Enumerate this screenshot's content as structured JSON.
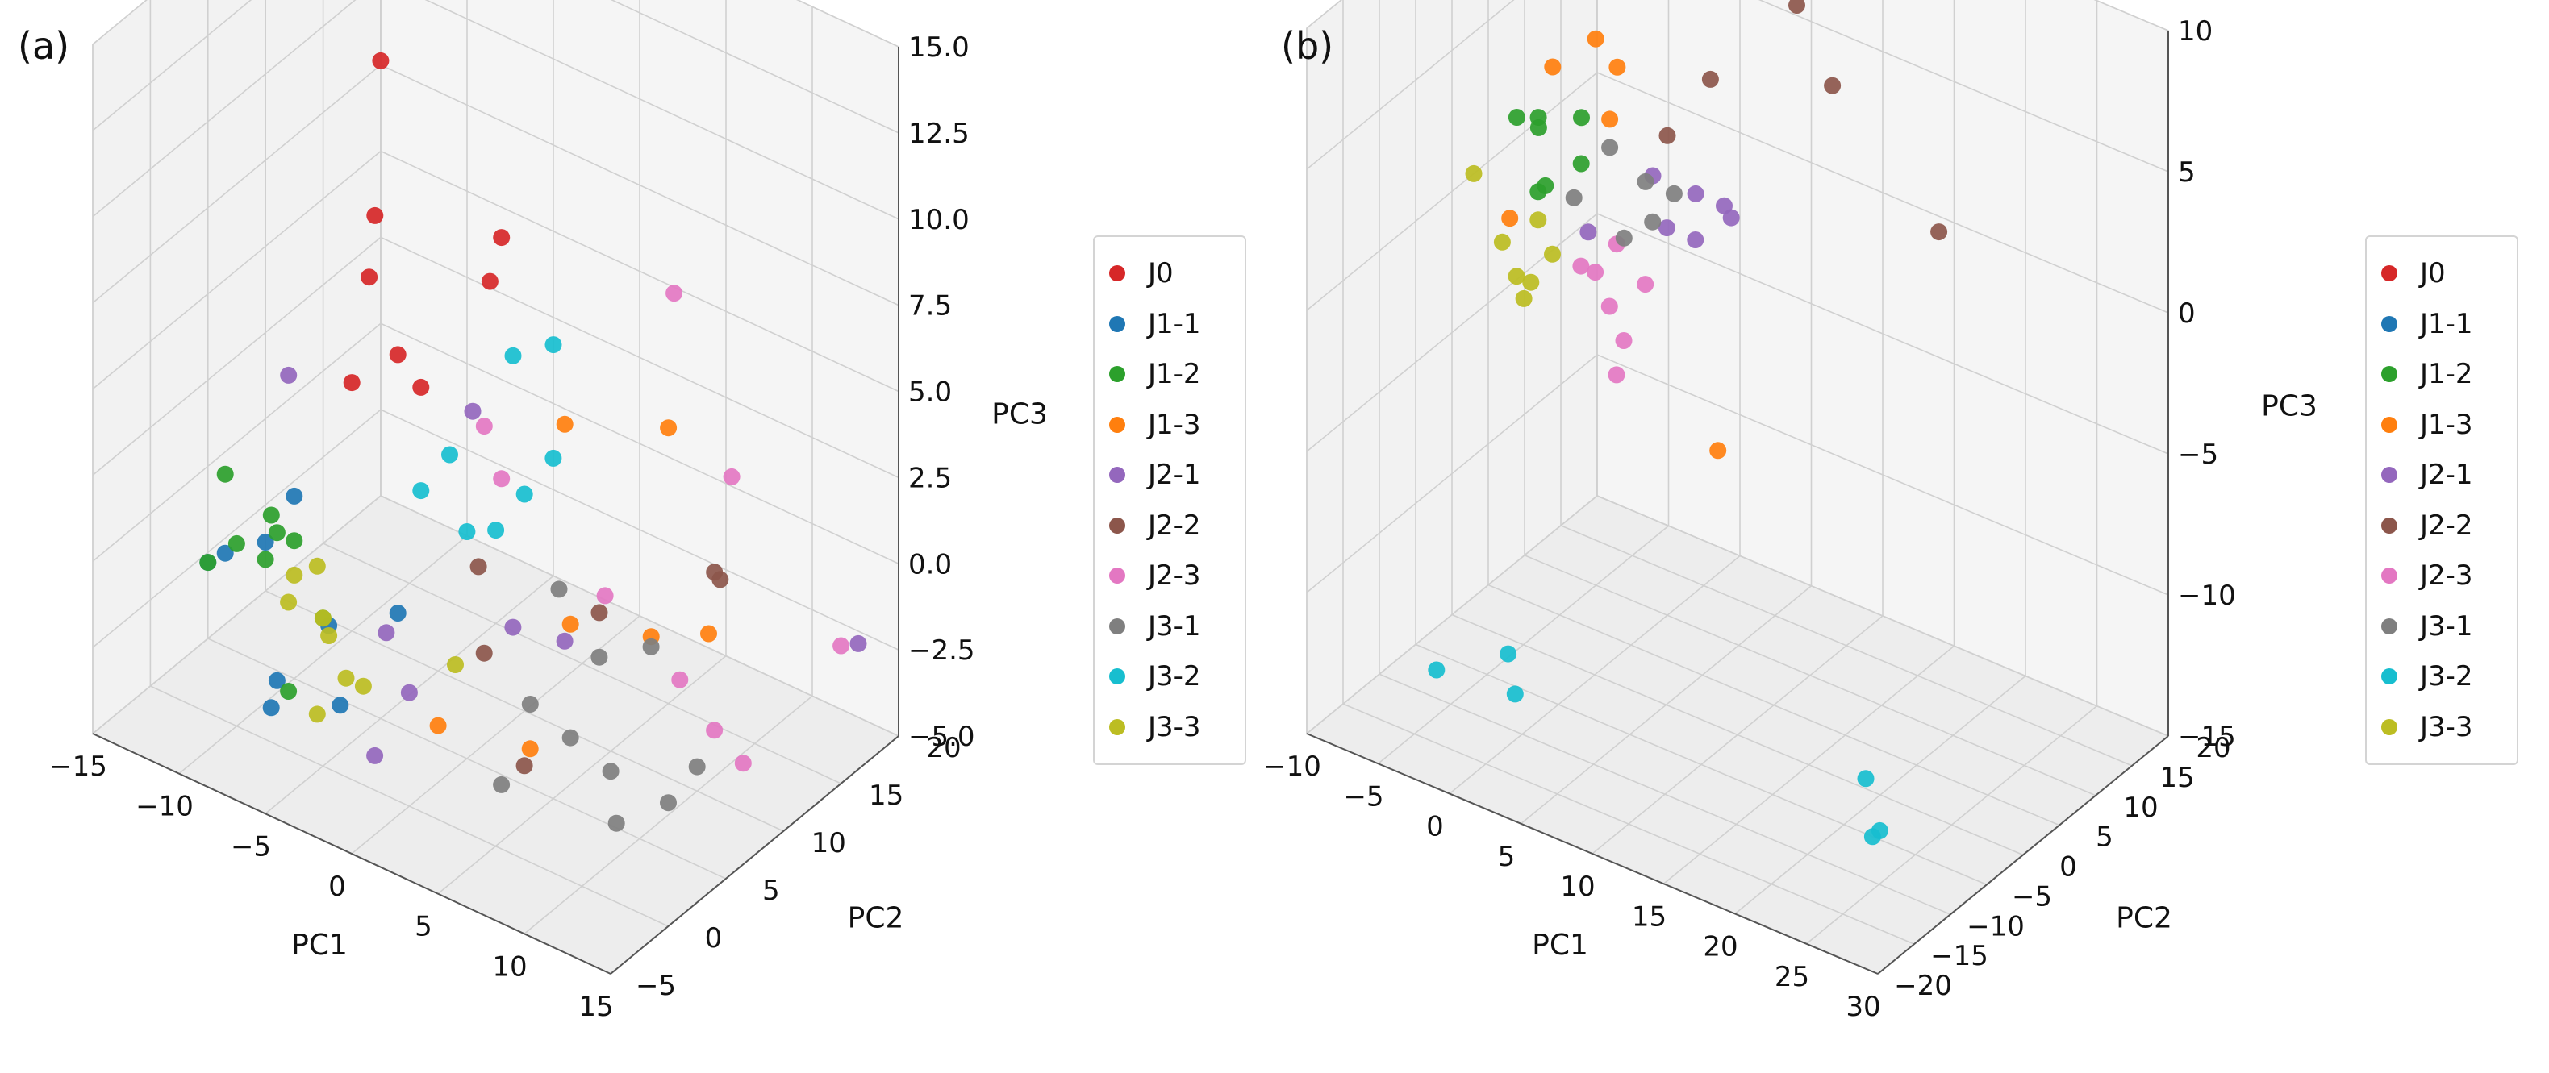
{
  "panels": [
    {
      "label": "(a)",
      "chart_data": {
        "type": "scatter",
        "projection": "3d",
        "xlabel": "PC1",
        "ylabel": "PC2",
        "zlabel": "PC3",
        "x_ticks": [
          "−15",
          "−10",
          "−5",
          "0",
          "5",
          "10",
          "15"
        ],
        "y_ticks": [
          "−5",
          "0",
          "5",
          "10",
          "15",
          "20"
        ],
        "z_ticks": [
          "−5.0",
          "−2.5",
          "0.0",
          "2.5",
          "5.0",
          "7.5",
          "10.0",
          "12.5",
          "15.0"
        ],
        "xlim": [
          -15,
          15
        ],
        "ylim": [
          -5,
          20
        ],
        "zlim": [
          -5,
          15
        ],
        "grid": true,
        "legend_position": "right",
        "series": [
          {
            "name": "J0",
            "color": "#d62728",
            "points": [
              [
                -10,
                12,
                13.5
              ],
              [
                -9,
                11,
                11.5
              ],
              [
                -10,
                12,
                6.5
              ],
              [
                -9,
                10,
                5.5
              ],
              [
                -8,
                7,
                3.5
              ],
              [
                -6,
                8,
                4.5
              ],
              [
                -2,
                10,
                7
              ],
              [
                -2,
                11,
                8
              ],
              [
                -6,
                10,
                3
              ]
            ]
          },
          {
            "name": "J1-1",
            "color": "#1f77b4",
            "points": [
              [
                -12,
                2,
                -1
              ],
              [
                -11,
                4,
                -1
              ],
              [
                -13,
                2,
                -1.5
              ],
              [
                -12,
                8,
                -1
              ],
              [
                -8,
                5,
                -3
              ],
              [
                -9,
                2,
                -4
              ],
              [
                -8,
                0,
                -4
              ],
              [
                -4,
                0,
                -3
              ],
              [
                -6,
                8,
                -3
              ]
            ]
          },
          {
            "name": "J1-2",
            "color": "#2ca02c",
            "points": [
              [
                -14,
                5,
                0
              ],
              [
                -12,
                6,
                -1
              ],
              [
                -11,
                5,
                -1
              ],
              [
                -10,
                5,
                -1
              ],
              [
                -11,
                4,
                -1.5
              ],
              [
                -12,
                3,
                -1
              ],
              [
                -13,
                2,
                -1.5
              ],
              [
                -7,
                3,
                -2
              ],
              [
                -5,
                -3,
                -2
              ]
            ]
          },
          {
            "name": "J1-3",
            "color": "#ff7f0e",
            "points": [
              [
                1,
                12,
                3
              ],
              [
                5,
                15,
                3
              ],
              [
                6,
                12,
                -2
              ],
              [
                -1,
                4,
                -4
              ],
              [
                4,
                8,
                -1
              ],
              [
                5,
                3,
                -3
              ],
              [
                8,
                14,
                -2
              ]
            ]
          },
          {
            "name": "J2-1",
            "color": "#9467bd",
            "points": [
              [
                -13,
                9,
                2
              ],
              [
                -3,
                10,
                3
              ],
              [
                -4,
                4,
                -2
              ],
              [
                -2,
                0,
                -4
              ],
              [
                3,
                9,
                -2
              ],
              [
                2,
                6,
                -1
              ],
              [
                -2,
                3,
                -3
              ],
              [
                14,
                18,
                -2
              ]
            ]
          },
          {
            "name": "J2-2",
            "color": "#8c564b",
            "points": [
              [
                -2,
                9,
                -1
              ],
              [
                3,
                12,
                -2
              ],
              [
                6,
                18,
                -2
              ],
              [
                7,
                16,
                -1
              ],
              [
                -1,
                8,
                -3
              ],
              [
                4,
                4,
                -4
              ]
            ]
          },
          {
            "name": "J2-3",
            "color": "#e377c2",
            "points": [
              [
                -5,
                14,
                1
              ],
              [
                -2,
                11,
                1
              ],
              [
                8,
                16,
                2
              ],
              [
                15,
                15,
                -1
              ],
              [
                9,
                10,
                -2
              ],
              [
                11,
                10,
                -3
              ],
              [
                12,
                11,
                -4
              ],
              [
                10,
                8,
                10
              ],
              [
                4,
                11,
                -1
              ]
            ]
          },
          {
            "name": "J3-1",
            "color": "#7f7f7f",
            "points": [
              [
                2,
                10,
                -1
              ],
              [
                5,
                9,
                -2
              ],
              [
                8,
                9,
                -1
              ],
              [
                6,
                5,
                -3
              ],
              [
                9,
                4,
                -3
              ],
              [
                11,
                6,
                -4
              ],
              [
                10,
                3,
                -4
              ],
              [
                12,
                7,
                -3
              ],
              [
                4,
                2,
                -4
              ],
              [
                3,
                6,
                -3
              ]
            ]
          },
          {
            "name": "J3-2",
            "color": "#17becf",
            "points": [
              [
                -4,
                15,
                3
              ],
              [
                -3,
                17,
                3
              ],
              [
                -5,
                11,
                1
              ],
              [
                -6,
                10,
                0
              ],
              [
                -4,
                11,
                -1
              ],
              [
                -2,
                13,
                0
              ],
              [
                -1,
                14,
                1
              ],
              [
                -3,
                12,
                -1
              ]
            ]
          },
          {
            "name": "J3-3",
            "color": "#bcbd22",
            "points": [
              [
                -10,
                5,
                -2
              ],
              [
                -7,
                3,
                -2
              ],
              [
                -6,
                2,
                -2
              ],
              [
                -5,
                2,
                -3
              ],
              [
                -4,
                2,
                -3
              ],
              [
                -8,
                4,
                -1
              ],
              [
                -9,
                3,
                -2
              ],
              [
                0,
                4,
                -2
              ],
              [
                -6,
                1,
                -4
              ]
            ]
          }
        ]
      }
    },
    {
      "label": "(b)",
      "chart_data": {
        "type": "scatter",
        "projection": "3d",
        "xlabel": "PC1",
        "ylabel": "PC2",
        "zlabel": "PC3",
        "x_ticks": [
          "−10",
          "−5",
          "0",
          "5",
          "10",
          "15",
          "20",
          "25",
          "30"
        ],
        "y_ticks": [
          "−20",
          "−15",
          "−10",
          "−5",
          "0",
          "5",
          "10",
          "15",
          "20"
        ],
        "z_ticks": [
          "−15",
          "−10",
          "−5",
          "0",
          "5",
          "10"
        ],
        "xlim": [
          -10,
          30
        ],
        "ylim": [
          -20,
          20
        ],
        "zlim": [
          -15,
          10
        ],
        "grid": true,
        "legend_position": "right",
        "series": [
          {
            "name": "J0",
            "color": "#d62728",
            "points": []
          },
          {
            "name": "J1-1",
            "color": "#1f77b4",
            "points": []
          },
          {
            "name": "J1-2",
            "color": "#2ca02c",
            "points": [
              [
                -8,
                5,
                2
              ],
              [
                -6,
                5,
                0
              ],
              [
                -5,
                8,
                2
              ],
              [
                -7,
                6,
                2
              ],
              [
                -4,
                6,
                1
              ],
              [
                -6,
                4,
                0
              ],
              [
                -8,
                8,
                1
              ]
            ]
          },
          {
            "name": "J1-3",
            "color": "#ff7f0e",
            "points": [
              [
                -6,
                6,
                4
              ],
              [
                -4,
                8,
                5
              ],
              [
                -3,
                9,
                4
              ],
              [
                0,
                12,
                8
              ],
              [
                5,
                17,
                7
              ],
              [
                -9,
                6,
                -2
              ],
              [
                1,
                15,
                -10
              ],
              [
                -2,
                6,
                3
              ]
            ]
          },
          {
            "name": "J2-1",
            "color": "#9467bd",
            "points": [
              [
                3,
                8,
                1
              ],
              [
                5,
                8,
                1
              ],
              [
                4,
                6,
                0
              ],
              [
                6,
                7,
                1
              ],
              [
                2,
                6,
                0
              ],
              [
                0,
                8,
                1
              ],
              [
                -3,
                5,
                -1
              ]
            ]
          },
          {
            "name": "J2-2",
            "color": "#8c564b",
            "points": [
              [
                5,
                18,
                6
              ],
              [
                8,
                17,
                4
              ],
              [
                18,
                12,
                2
              ],
              [
                0,
                10,
                2
              ],
              [
                2,
                12,
                4
              ]
            ]
          },
          {
            "name": "J2-3",
            "color": "#e377c2",
            "points": [
              [
                -2,
                4,
                -2
              ],
              [
                -1,
                4,
                -3
              ],
              [
                0,
                4,
                -4
              ],
              [
                1,
                5,
                -2
              ],
              [
                -3,
                4,
                -2
              ],
              [
                -1,
                5,
                -1
              ],
              [
                0,
                3,
                -5
              ]
            ]
          },
          {
            "name": "J3-1",
            "color": "#7f7f7f",
            "points": [
              [
                -2,
                6,
                2
              ],
              [
                0,
                7,
                1
              ],
              [
                1,
                6,
                0
              ],
              [
                -1,
                6,
                -1
              ],
              [
                -4,
                5,
                0
              ],
              [
                2,
                7,
                1
              ]
            ]
          },
          {
            "name": "J3-2",
            "color": "#17becf",
            "points": [
              [
                -2,
                15,
                10
              ],
              [
                0,
                15,
                10
              ],
              [
                5,
                20,
                12
              ],
              [
                8,
                22,
                12
              ],
              [
                -6,
                -10,
                -14
              ],
              [
                -2,
                -8,
                -13
              ],
              [
                -1,
                -9,
                -14
              ],
              [
                20,
                -2,
                -14
              ],
              [
                22,
                -4,
                -15
              ],
              [
                22,
                -5,
                -15
              ]
            ]
          },
          {
            "name": "J3-3",
            "color": "#bcbd22",
            "points": [
              [
                -10,
                3,
                0
              ],
              [
                -8,
                3,
                -2
              ],
              [
                -7,
                3,
                -3
              ],
              [
                -6,
                3,
                -3
              ],
              [
                -5,
                4,
                -2
              ],
              [
                -6,
                4,
                -1
              ],
              [
                -7,
                4,
                -4
              ]
            ]
          }
        ]
      }
    }
  ]
}
